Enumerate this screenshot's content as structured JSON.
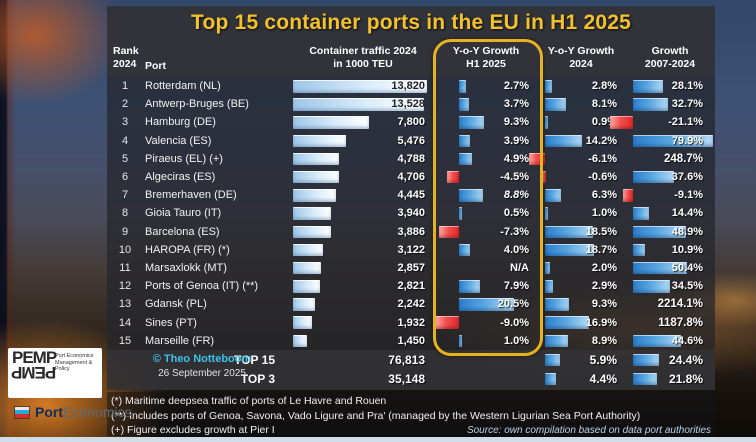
{
  "title": "Top 15 container ports in the EU in H1 2025",
  "accent_colors": {
    "title_yellow": "#f2c12c",
    "highlight_box": "#e7b31d",
    "positive_bar": "#57a5e0",
    "negative_bar": "#f25050",
    "credit_cyan": "#3cc1ec"
  },
  "headers": {
    "rank": "Rank\n2024",
    "port": "Port",
    "traffic": "Container traffic 2024\nin 1000 TEU",
    "h1": "Y-o-Y Growth\nH1 2025",
    "g24": "Y-o-Y Growth\n2024",
    "g0724": "Growth\n2007-2024"
  },
  "table": {
    "rows": [
      {
        "rank": "1",
        "port": "Rotterdam (NL)",
        "traffic": "13,820",
        "traffic_teu": 13820,
        "h1": "2.7%",
        "h1_pct": 2.7,
        "g24": "2.8%",
        "g24_pct": 2.8,
        "g0724": "28.1%",
        "g0724_pct": 28.1
      },
      {
        "rank": "2",
        "port": "Antwerp-Bruges (BE)",
        "traffic": "13,528",
        "traffic_teu": 13528,
        "h1": "3.7%",
        "h1_pct": 3.7,
        "g24": "8.1%",
        "g24_pct": 8.1,
        "g0724": "32.7%",
        "g0724_pct": 32.7
      },
      {
        "rank": "3",
        "port": "Hamburg (DE)",
        "traffic": "7,800",
        "traffic_teu": 7800,
        "h1": "9.3%",
        "h1_pct": 9.3,
        "g24": "0.9%",
        "g24_pct": 0.9,
        "g0724": "-21.1%",
        "g0724_pct": -21.1
      },
      {
        "rank": "4",
        "port": "Valencia (ES)",
        "traffic": "5,476",
        "traffic_teu": 5476,
        "h1": "3.9%",
        "h1_pct": 3.9,
        "g24": "14.2%",
        "g24_pct": 14.2,
        "g0724": "79.9%",
        "g0724_pct": 79.9
      },
      {
        "rank": "5",
        "port": "Piraeus (EL) (+)",
        "traffic": "4,788",
        "traffic_teu": 4788,
        "h1": "4.9%",
        "h1_pct": 4.9,
        "g24": "-6.1%",
        "g24_pct": -6.1,
        "g0724": "248.7%",
        "g0724_pct": 248.7,
        "g0724_no_bar": true
      },
      {
        "rank": "6",
        "port": "Algeciras (ES)",
        "traffic": "4,706",
        "traffic_teu": 4706,
        "h1": "-4.5%",
        "h1_pct": -4.5,
        "g24": "-0.6%",
        "g24_pct": -0.6,
        "g0724": "37.6%",
        "g0724_pct": 37.6
      },
      {
        "rank": "7",
        "port": "Bremerhaven (DE)",
        "traffic": "4,445",
        "traffic_teu": 4445,
        "h1": "8.8%",
        "h1_pct": 8.8,
        "h1_italic": true,
        "g24": "6.3%",
        "g24_pct": 6.3,
        "g0724": "-9.1%",
        "g0724_pct": -9.1
      },
      {
        "rank": "8",
        "port": "Gioia Tauro (IT)",
        "traffic": "3,940",
        "traffic_teu": 3940,
        "h1": "0.5%",
        "h1_pct": 0.5,
        "g24": "1.0%",
        "g24_pct": 1.0,
        "g0724": "14.4%",
        "g0724_pct": 14.4
      },
      {
        "rank": "9",
        "port": "Barcelona (ES)",
        "traffic": "3,886",
        "traffic_teu": 3886,
        "h1": "-7.3%",
        "h1_pct": -7.3,
        "g24": "18.5%",
        "g24_pct": 18.5,
        "g0724": "48.9%",
        "g0724_pct": 48.9
      },
      {
        "rank": "10",
        "port": "HAROPA (FR) (*)",
        "traffic": "3,122",
        "traffic_teu": 3122,
        "h1": "4.0%",
        "h1_pct": 4.0,
        "g24": "18.7%",
        "g24_pct": 18.7,
        "g0724": "10.9%",
        "g0724_pct": 10.9
      },
      {
        "rank": "11",
        "port": "Marsaxlokk (MT)",
        "traffic": "2,857",
        "traffic_teu": 2857,
        "h1": "N/A",
        "h1_pct": null,
        "g24": "2.0%",
        "g24_pct": 2.0,
        "g0724": "50.4%",
        "g0724_pct": 50.4
      },
      {
        "rank": "12",
        "port": "Ports of Genoa (IT) (**)",
        "traffic": "2,821",
        "traffic_teu": 2821,
        "h1": "7.9%",
        "h1_pct": 7.9,
        "g24": "2.9%",
        "g24_pct": 2.9,
        "g0724": "34.5%",
        "g0724_pct": 34.5
      },
      {
        "rank": "13",
        "port": "Gdansk (PL)",
        "traffic": "2,242",
        "traffic_teu": 2242,
        "h1": "20.5%",
        "h1_pct": 20.5,
        "g24": "9.3%",
        "g24_pct": 9.3,
        "g0724": "2214.1%",
        "g0724_pct": 2214.1,
        "g0724_no_bar": true
      },
      {
        "rank": "14",
        "port": "Sines (PT)",
        "traffic": "1,932",
        "traffic_teu": 1932,
        "h1": "-9.0%",
        "h1_pct": -9.0,
        "g24": "16.9%",
        "g24_pct": 16.9,
        "g0724": "1187.8%",
        "g0724_pct": 1187.8,
        "g0724_no_bar": true
      },
      {
        "rank": "15",
        "port": "Marseille (FR)",
        "traffic": "1,450",
        "traffic_teu": 1450,
        "h1": "1.0%",
        "h1_pct": 1.0,
        "g24": "8.9%",
        "g24_pct": 8.9,
        "g0724": "44.6%",
        "g0724_pct": 44.6
      }
    ],
    "summary": [
      {
        "label": "TOP 15",
        "traffic": "76,813",
        "g24": "5.9%",
        "g24_pct": 5.9,
        "g0724": "24.4%",
        "g0724_pct": 24.4
      },
      {
        "label": "TOP 3",
        "traffic": "35,148",
        "g24": "4.4%",
        "g24_pct": 4.4,
        "g0724": "21.8%",
        "g0724_pct": 21.8
      }
    ]
  },
  "credit": {
    "author": "© Theo Notteboom",
    "date": "26 September 2025"
  },
  "footnotes": {
    "fn1": "(*) Maritime deepsea traffic of ports of Le Havre and Rouen",
    "fn2": "(**) Includes ports of Genoa, Savona, Vado Ligure and Pra' (managed by the Western Ligurian Sea Port Authority)",
    "fn3": "(+) Figure excludes growth at Pier I",
    "source": "Source: own compilation based on data port authorities"
  },
  "logos": {
    "pemp_word": "PEMP",
    "pemp_sub": "Port Economics\nManagement & Policy",
    "brand_bold": "Port",
    "brand_light": "Economics"
  },
  "chart_data": {
    "type": "table",
    "title": "Top 15 container ports in the EU in H1 2025",
    "columns": [
      "Rank 2024",
      "Port",
      "Container traffic 2024 in 1000 TEU",
      "Y-o-Y Growth H1 2025 (%)",
      "Y-o-Y Growth 2024 (%)",
      "Growth 2007-2024 (%)"
    ],
    "rows": [
      [
        1,
        "Rotterdam (NL)",
        13820,
        2.7,
        2.8,
        28.1
      ],
      [
        2,
        "Antwerp-Bruges (BE)",
        13528,
        3.7,
        8.1,
        32.7
      ],
      [
        3,
        "Hamburg (DE)",
        7800,
        9.3,
        0.9,
        -21.1
      ],
      [
        4,
        "Valencia (ES)",
        5476,
        3.9,
        14.2,
        79.9
      ],
      [
        5,
        "Piraeus (EL) (+)",
        4788,
        4.9,
        -6.1,
        248.7
      ],
      [
        6,
        "Algeciras (ES)",
        4706,
        -4.5,
        -0.6,
        37.6
      ],
      [
        7,
        "Bremerhaven (DE)",
        4445,
        8.8,
        6.3,
        -9.1
      ],
      [
        8,
        "Gioia Tauro (IT)",
        3940,
        0.5,
        1.0,
        14.4
      ],
      [
        9,
        "Barcelona (ES)",
        3886,
        -7.3,
        18.5,
        48.9
      ],
      [
        10,
        "HAROPA (FR) (*)",
        3122,
        4.0,
        18.7,
        10.9
      ],
      [
        11,
        "Marsaxlokk (MT)",
        2857,
        null,
        2.0,
        50.4
      ],
      [
        12,
        "Ports of Genoa (IT) (**)",
        2821,
        7.9,
        2.9,
        34.5
      ],
      [
        13,
        "Gdansk (PL)",
        2242,
        20.5,
        9.3,
        2214.1
      ],
      [
        14,
        "Sines (PT)",
        1932,
        -9.0,
        16.9,
        1187.8
      ],
      [
        15,
        "Marseille (FR)",
        1450,
        1.0,
        8.9,
        44.6
      ]
    ],
    "summary": [
      [
        "TOP 15",
        76813,
        null,
        5.9,
        24.4
      ],
      [
        "TOP 3",
        35148,
        null,
        4.4,
        21.8
      ]
    ],
    "bars": {
      "traffic_bar_max": 13820,
      "growth_bars_positive_color": "blue",
      "growth_bars_negative_color": "red",
      "no_bar_offscale_values": [
        248.7,
        2214.1,
        1187.8
      ]
    }
  }
}
